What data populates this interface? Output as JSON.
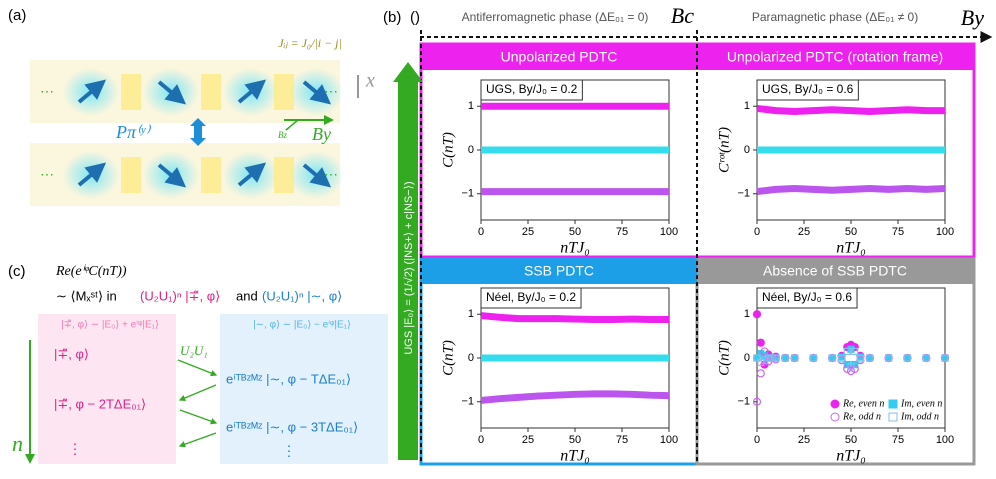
{
  "panel_a": {
    "label": "(a)",
    "coupling": "Jᵢⱼ = J₀/|i − j|",
    "x_axis": "x",
    "symmetry": "Pπ⁽ʸ⁾",
    "field_z": "Bz",
    "field_y": "By",
    "dots": "···"
  },
  "panel_b": {
    "label": "(b)",
    "marker": "()",
    "phase_left": "Antiferromagnetic phase (ΔE₀₁ = 0)",
    "critical": "Bc",
    "phase_right": "Paramagnetic phase (ΔE₀₁ ≠ 0)",
    "field": "By",
    "ugs": "UGS |E₀⟩ = (1/√2) (|NS+⟩ + c|NS−⟩)",
    "bars": [
      "Unpolarized PDTC",
      "Unpolarized PDTC (rotation frame)",
      "SSB PDTC",
      "Absence of SSB PDTC"
    ]
  },
  "panel_c": {
    "label": "(c)",
    "expr": "Re(eⁱᵠC(nT))",
    "sim": "∼ ⟨Mₓˢᵗ⟩ in",
    "state_minus": "(U₂U₁)ⁿ |∓̃, φ⟩",
    "and": "and",
    "state_tilde": "(U₂U₁)ⁿ |∼, φ⟩",
    "def_minus": "|∓̃, φ⟩ ∼ |E₀⟩ + eⁱᵠ|E₁⟩",
    "def_tilde": "|∼, φ⟩ ∼ |E₀⟩ − eⁱᵠ|E₁⟩",
    "left": [
      "|∓̃, φ⟩",
      "|∓̃, φ − 2TΔE₀₁⟩",
      "⋮"
    ],
    "op": "U₂U₁",
    "right": [
      "eⁱᵀᴮᶻᴹᶻ |∼, φ − TΔE₀₁⟩",
      "eⁱᵀᴮᶻᴹᶻ |∼, φ − 3TΔE₀₁⟩",
      "⋮"
    ],
    "n": "n"
  },
  "chart_data": [
    {
      "type": "line",
      "state": "UGS, By/J₀ = 0.2",
      "ylabel": "C(nT)",
      "xlabel": "nTJ₀",
      "xlim": [
        0,
        100
      ],
      "ylim": [
        -1.6,
        1.6
      ],
      "xticks": [
        0,
        25,
        50,
        75,
        100
      ],
      "yticks": [
        {
          "value": -1,
          "label": "−1"
        },
        0,
        1
      ],
      "x": [
        0,
        10,
        20,
        30,
        40,
        50,
        60,
        70,
        80,
        90,
        100
      ],
      "series": [
        {
          "color": "#ee22ee",
          "values": [
            1,
            1,
            1,
            1,
            1,
            1,
            1,
            1,
            1,
            1,
            1
          ]
        },
        {
          "color": "#33dded",
          "values": [
            0,
            0,
            0,
            0,
            0,
            0,
            0,
            0,
            0,
            0,
            0
          ]
        },
        {
          "color": "#bb55ee",
          "values": [
            -0.95,
            -0.95,
            -0.95,
            -0.95,
            -0.95,
            -0.95,
            -0.95,
            -0.95,
            -0.95,
            -0.95,
            -0.95
          ]
        }
      ]
    },
    {
      "type": "line",
      "state": "UGS, By/J₀ = 0.6",
      "ylabel": "Cʳᵒᵗ(nT)",
      "xlabel": "nTJ₀",
      "xlim": [
        0,
        100
      ],
      "ylim": [
        -1.6,
        1.6
      ],
      "xticks": [
        0,
        25,
        50,
        75,
        100
      ],
      "yticks": [
        {
          "value": -1,
          "label": "−1"
        },
        0,
        1
      ],
      "x": [
        0,
        10,
        20,
        30,
        40,
        50,
        60,
        70,
        80,
        90,
        100
      ],
      "series": [
        {
          "color": "#ee22ee",
          "values": [
            0.95,
            0.9,
            0.88,
            0.9,
            0.92,
            0.9,
            0.88,
            0.9,
            0.92,
            0.9,
            0.9
          ]
        },
        {
          "color": "#33dded",
          "values": [
            0,
            0,
            0,
            0,
            0,
            0,
            0,
            0,
            0,
            0,
            0
          ]
        },
        {
          "color": "#bb55ee",
          "values": [
            -0.95,
            -0.9,
            -0.88,
            -0.9,
            -0.92,
            -0.9,
            -0.88,
            -0.9,
            -0.88,
            -0.9,
            -0.88
          ]
        }
      ]
    },
    {
      "type": "line",
      "state": "Néel, By/J₀ = 0.2",
      "ylabel": "C(nT)",
      "xlabel": "nTJ₀",
      "xlim": [
        0,
        100
      ],
      "ylim": [
        -1.6,
        1.6
      ],
      "xticks": [
        0,
        25,
        50,
        75,
        100
      ],
      "yticks": [
        {
          "value": -1,
          "label": "−1"
        },
        0,
        1
      ],
      "x": [
        0,
        10,
        20,
        30,
        40,
        50,
        60,
        70,
        80,
        90,
        100
      ],
      "series": [
        {
          "color": "#ee22ee",
          "values": [
            0.97,
            0.93,
            0.9,
            0.9,
            0.9,
            0.89,
            0.88,
            0.88,
            0.89,
            0.88,
            0.88
          ]
        },
        {
          "color": "#33dded",
          "values": [
            0,
            0,
            0,
            0,
            0,
            0,
            0,
            0,
            0,
            0,
            0
          ]
        },
        {
          "color": "#bb55ee",
          "values": [
            -0.97,
            -0.93,
            -0.9,
            -0.87,
            -0.85,
            -0.83,
            -0.82,
            -0.82,
            -0.83,
            -0.85,
            -0.86
          ]
        }
      ]
    },
    {
      "type": "scatter",
      "state": "Néel, By/J₀ = 0.6",
      "ylabel": "C(nT)",
      "xlabel": "nTJ₀",
      "xlim": [
        0,
        100
      ],
      "ylim": [
        -1.6,
        1.6
      ],
      "xticks": [
        0,
        25,
        50,
        75,
        100
      ],
      "yticks": [
        {
          "value": -1,
          "label": "−1"
        },
        0,
        1
      ],
      "x": [
        0,
        2,
        4,
        6,
        8,
        10,
        15,
        20,
        30,
        40,
        45,
        48,
        50,
        52,
        55,
        60,
        70,
        80,
        90,
        100
      ],
      "series": [
        {
          "name": "Re, even n",
          "color": "#ee22ee",
          "marker": "circle",
          "filled": true,
          "values": [
            1,
            0.35,
            -0.15,
            0.08,
            0,
            0.03,
            0,
            0,
            0,
            0,
            0.05,
            0.25,
            0.3,
            0.25,
            0.05,
            0,
            0,
            0,
            0,
            0
          ]
        },
        {
          "name": "Im, even n",
          "color": "#33ccee",
          "marker": "square",
          "filled": true,
          "values": [
            0,
            0.1,
            0.05,
            0,
            0,
            0,
            0,
            0,
            0,
            0,
            0.02,
            -0.15,
            0.2,
            -0.15,
            0.02,
            0,
            0,
            0,
            0,
            0
          ]
        },
        {
          "name": "Re, odd n",
          "color": "#cc66ee",
          "marker": "circle",
          "filled": false,
          "values": [
            -1,
            -0.35,
            0.15,
            -0.08,
            0,
            -0.03,
            0,
            0,
            0,
            0,
            -0.05,
            -0.25,
            -0.3,
            -0.25,
            -0.05,
            0,
            0,
            0,
            0,
            0
          ]
        },
        {
          "name": "Im, odd n",
          "color": "#88bbee",
          "marker": "square",
          "filled": false,
          "values": [
            0,
            -0.1,
            -0.05,
            0,
            0,
            0,
            0,
            0,
            0,
            0,
            -0.02,
            0.15,
            -0.2,
            0.15,
            -0.02,
            0,
            0,
            0,
            0,
            0
          ]
        }
      ]
    }
  ]
}
